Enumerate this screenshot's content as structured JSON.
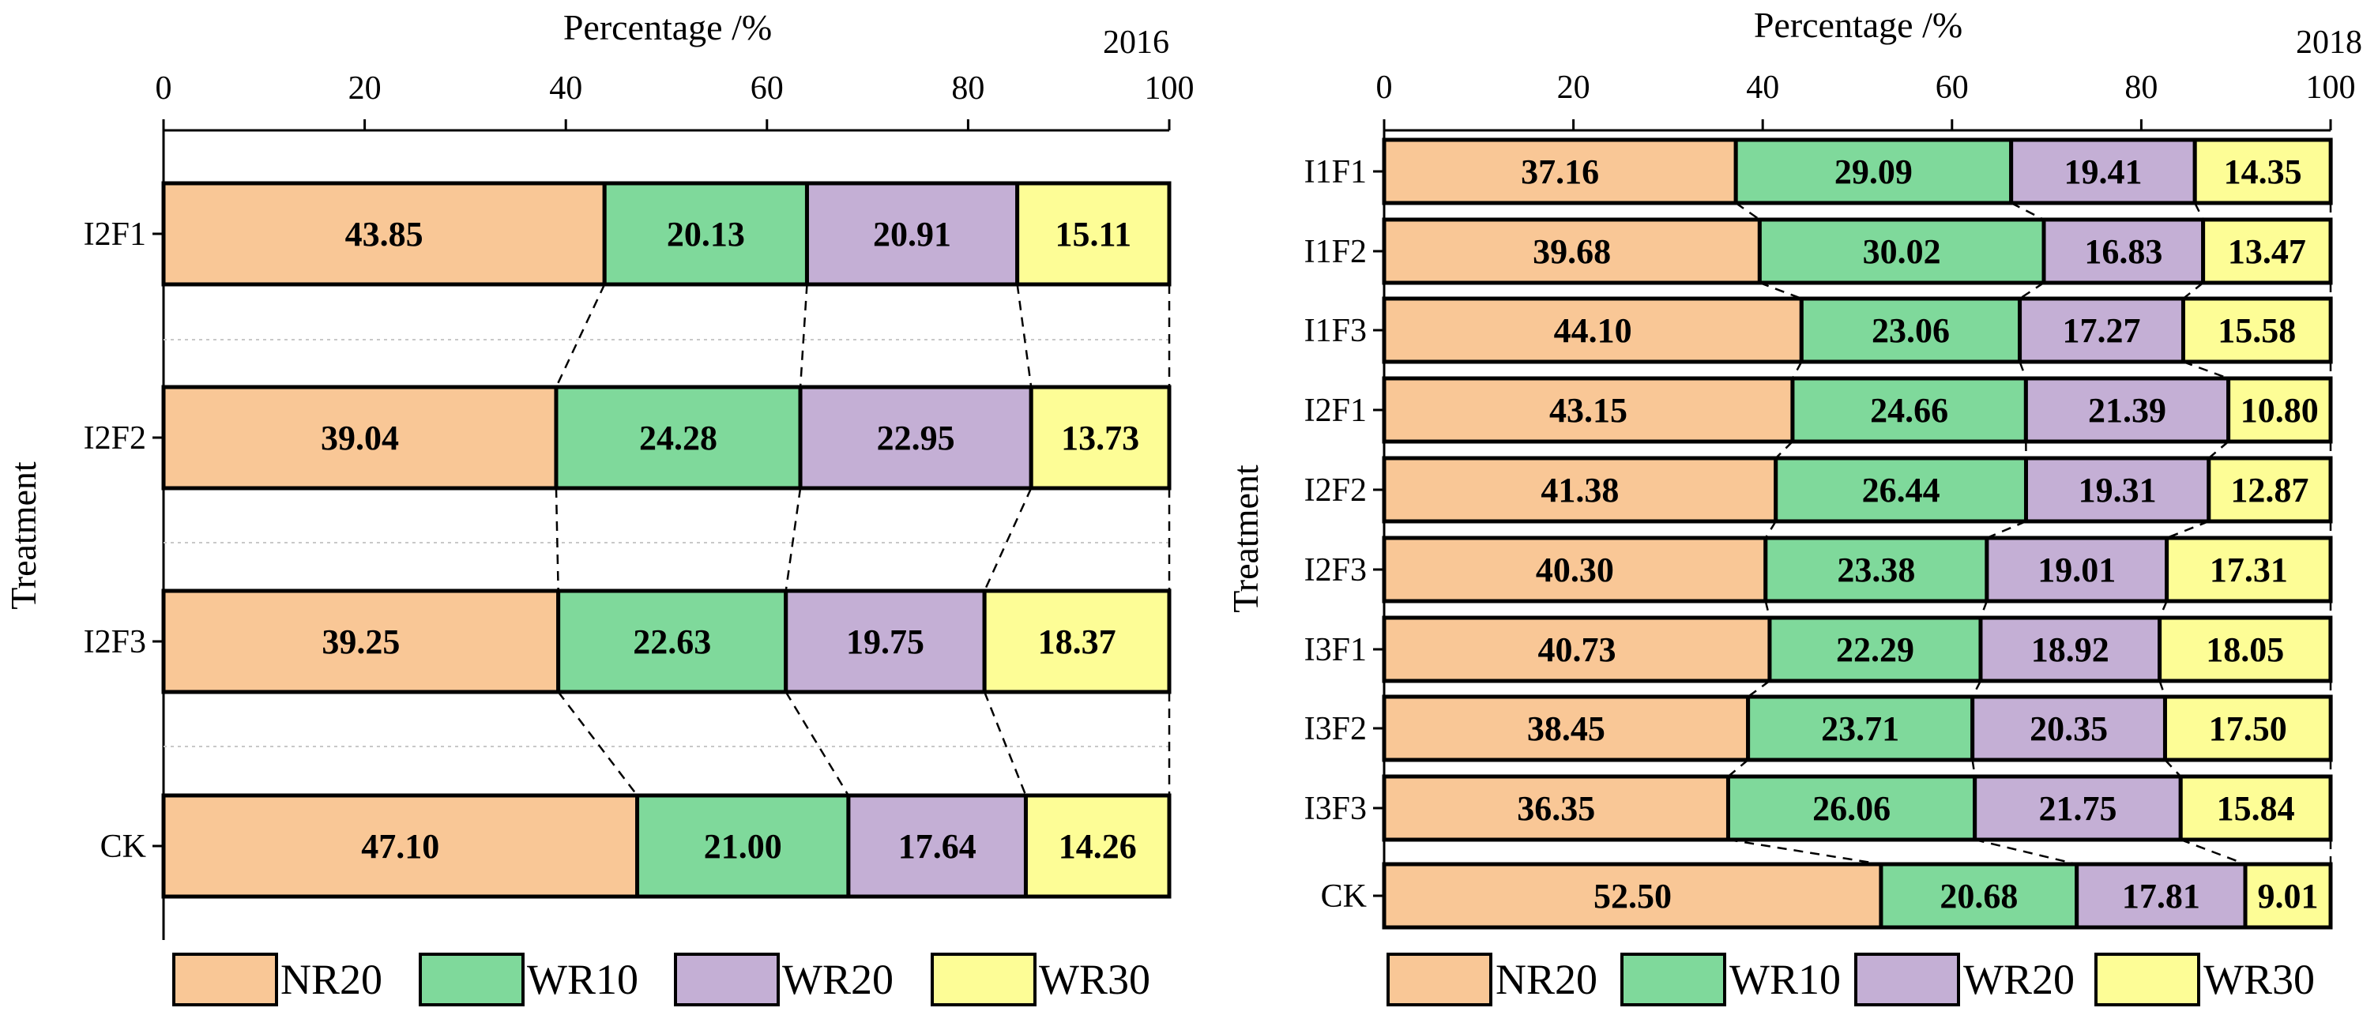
{
  "colors": {
    "NR20": "#f9c796",
    "WR10": "#7fd99b",
    "WR20": "#c4afd5",
    "WR30": "#fdfd96"
  },
  "chart_data": [
    {
      "type": "bar",
      "orientation": "horizontal",
      "stacked": true,
      "title": "2016",
      "xlabel": "Percentage /%",
      "ylabel": "Treatment",
      "xlim": [
        0,
        100
      ],
      "xticks": [
        "0",
        "20",
        "40",
        "60",
        "80",
        "100"
      ],
      "categories": [
        "I2F1",
        "I2F2",
        "I2F3",
        "CK"
      ],
      "series": [
        {
          "name": "NR20",
          "values": [
            43.85,
            39.04,
            39.25,
            47.1
          ],
          "labels": [
            "43.85",
            "39.04",
            "39.25",
            "47.10"
          ]
        },
        {
          "name": "WR10",
          "values": [
            20.13,
            24.28,
            22.63,
            21.0
          ],
          "labels": [
            "20.13",
            "24.28",
            "22.63",
            "21.00"
          ]
        },
        {
          "name": "WR20",
          "values": [
            20.91,
            22.95,
            19.75,
            17.64
          ],
          "labels": [
            "20.91",
            "22.95",
            "19.75",
            "17.64"
          ]
        },
        {
          "name": "WR30",
          "values": [
            15.11,
            13.73,
            18.37,
            14.26
          ],
          "labels": [
            "15.11",
            "13.73",
            "18.37",
            "14.26"
          ]
        }
      ],
      "legend": [
        "NR20",
        "WR10",
        "WR20",
        "WR30"
      ],
      "legend_position": "bottom"
    },
    {
      "type": "bar",
      "orientation": "horizontal",
      "stacked": true,
      "title": "2018",
      "xlabel": "Percentage /%",
      "ylabel": "Treatment",
      "xlim": [
        0,
        100
      ],
      "xticks": [
        "0",
        "20",
        "40",
        "60",
        "80",
        "100"
      ],
      "categories": [
        "I1F1",
        "I1F2",
        "I1F3",
        "I2F1",
        "I2F2",
        "I2F3",
        "I3F1",
        "I3F2",
        "I3F3",
        "CK"
      ],
      "series": [
        {
          "name": "NR20",
          "values": [
            37.16,
            39.68,
            44.1,
            43.15,
            41.38,
            40.3,
            40.73,
            38.45,
            36.35,
            52.5
          ],
          "labels": [
            "37.16",
            "39.68",
            "44.10",
            "43.15",
            "41.38",
            "40.30",
            "40.73",
            "38.45",
            "36.35",
            "52.50"
          ]
        },
        {
          "name": "WR10",
          "values": [
            29.09,
            30.02,
            23.06,
            24.66,
            26.44,
            23.38,
            22.29,
            23.71,
            26.06,
            20.68
          ],
          "labels": [
            "29.09",
            "30.02",
            "23.06",
            "24.66",
            "26.44",
            "23.38",
            "22.29",
            "23.71",
            "26.06",
            "20.68"
          ]
        },
        {
          "name": "WR20",
          "values": [
            19.41,
            16.83,
            17.27,
            21.39,
            19.31,
            19.01,
            18.92,
            20.35,
            21.75,
            17.81
          ],
          "labels": [
            "19.41",
            "16.83",
            "17.27",
            "21.39",
            "19.31",
            "19.01",
            "18.92",
            "20.35",
            "21.75",
            "17.81"
          ]
        },
        {
          "name": "WR30",
          "values": [
            14.35,
            13.47,
            15.58,
            10.8,
            12.87,
            17.31,
            18.05,
            17.5,
            15.84,
            9.01
          ],
          "labels": [
            "14.35",
            "13.47",
            "15.58",
            "10.80",
            "12.87",
            "17.31",
            "18.05",
            "17.50",
            "15.84",
            "9.01"
          ]
        }
      ],
      "legend": [
        "NR20",
        "WR10",
        "WR20",
        "WR30"
      ],
      "legend_position": "bottom"
    }
  ]
}
